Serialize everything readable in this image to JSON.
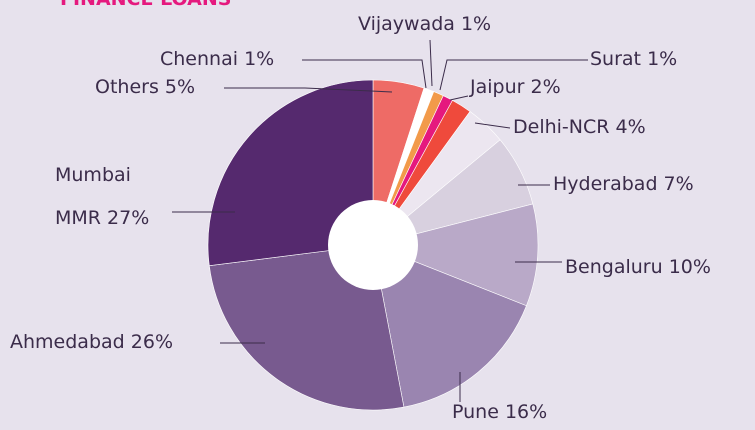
{
  "chart_data": {
    "type": "pie",
    "title": "FINANCE LOANS",
    "categories": [
      "Others",
      "Chennai",
      "Vijaywada",
      "Surat",
      "Jaipur",
      "Delhi-NCR",
      "Hyderabad",
      "Bengaluru",
      "Pune",
      "Ahmedabad",
      "Mumbai MMR"
    ],
    "values": [
      5,
      1,
      1,
      1,
      2,
      4,
      7,
      10,
      16,
      26,
      27
    ],
    "value_labels": [
      "5%",
      "1%",
      "1%",
      "1%",
      "2%",
      "4%",
      "7%",
      "10%",
      "16%",
      "26%",
      "27%"
    ],
    "colors": [
      "#ee6b66",
      "#ffffff",
      "#f29a4a",
      "#e5197e",
      "#ef4a3c",
      "#ece6f0",
      "#d8d0df",
      "#b9a9c8",
      "#9a85b0",
      "#785a8f",
      "#55296e"
    ]
  }
}
